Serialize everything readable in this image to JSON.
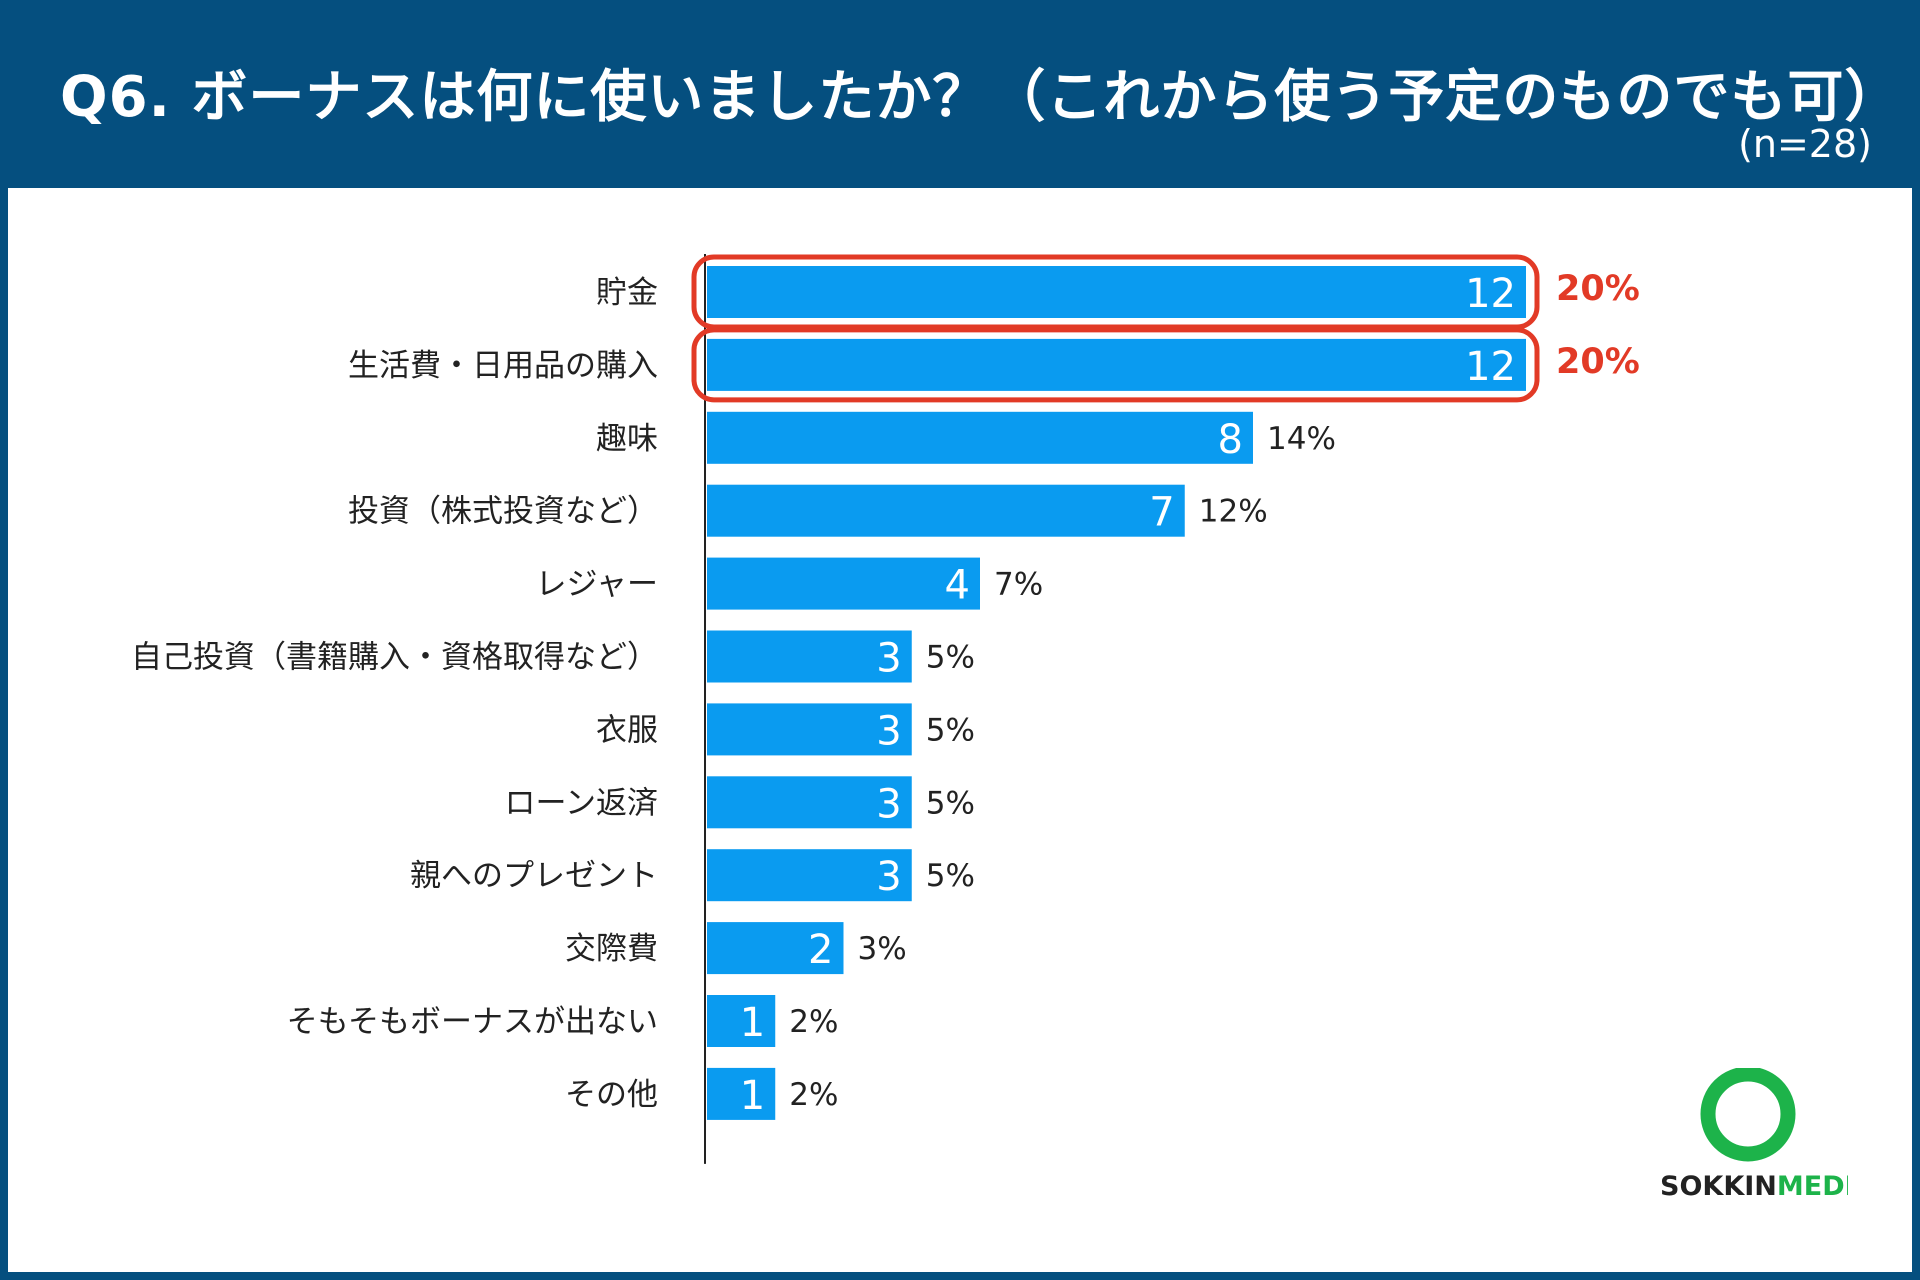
{
  "header": {
    "title": "Q6. ボーナスは何に使いましたか？（これから使う予定のものでも可）",
    "sample_size": "(n=28)"
  },
  "colors": {
    "bar": "#0a9bf0",
    "highlight": "#e23a26",
    "header_bg": "#054f7f",
    "logo_green": "#1db34a"
  },
  "logo": {
    "brand_dark": "SOKKIN",
    "brand_green": "MEDIA"
  },
  "chart_data": {
    "type": "bar",
    "orientation": "horizontal",
    "title": "Q6. ボーナスは何に使いましたか？（これから使う予定のものでも可）",
    "categories": [
      "貯金",
      "生活費・日用品の購入",
      "趣味",
      "投資（株式投資など）",
      "レジャー",
      "自己投資（書籍購入・資格取得など）",
      "衣服",
      "ローン返済",
      "親へのプレゼント",
      "交際費",
      "そもそもボーナスが出ない",
      "その他"
    ],
    "values": [
      12,
      12,
      8,
      7,
      4,
      3,
      3,
      3,
      3,
      2,
      1,
      1
    ],
    "percent_labels": [
      "20%",
      "20%",
      "14%",
      "12%",
      "7%",
      "5%",
      "5%",
      "5%",
      "5%",
      "3%",
      "2%",
      "2%"
    ],
    "highlighted": [
      0,
      1
    ],
    "xlim": [
      0,
      12
    ],
    "xlabel": "",
    "ylabel": "",
    "grid": false,
    "legend": "none"
  }
}
